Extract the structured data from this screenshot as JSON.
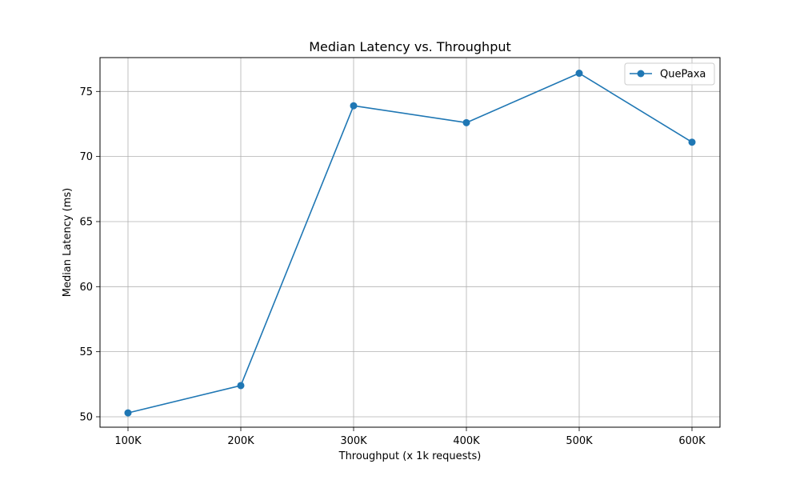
{
  "chart_data": {
    "type": "line",
    "title": "Median Latency vs. Throughput",
    "xlabel": "Throughput (x 1k requests)",
    "ylabel": "Median Latency (ms)",
    "categories": [
      "100K",
      "200K",
      "300K",
      "400K",
      "500K",
      "600K"
    ],
    "y_ticks": [
      50,
      55,
      60,
      65,
      70,
      75
    ],
    "ylim": [
      49.2,
      77.6
    ],
    "grid": true,
    "legend_position": "top-right",
    "series": [
      {
        "name": "QuePaxa",
        "color": "#1f77b4",
        "marker": "circle",
        "values": [
          50.3,
          52.4,
          73.9,
          72.6,
          76.4,
          71.1
        ]
      }
    ]
  }
}
